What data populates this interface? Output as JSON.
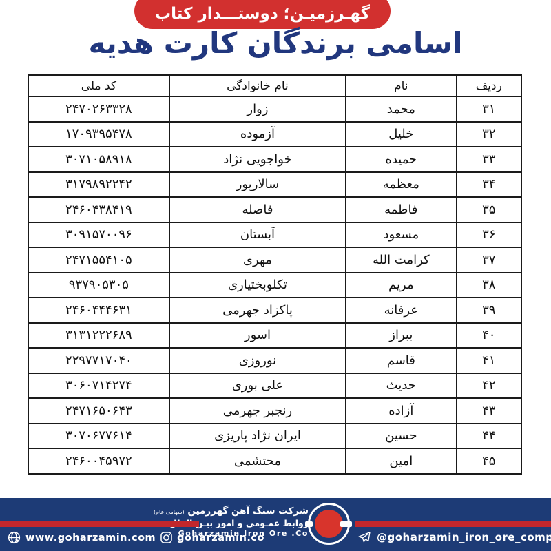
{
  "banner": {
    "label": "گهـرزمیـن؛ دوستـــدار کتاب"
  },
  "title": "اسامی برندگان کارت هدیه",
  "table": {
    "headers": {
      "row": "ردیف",
      "first_name": "نام",
      "last_name": "نام خانوادگی",
      "national_code": "کد ملی"
    },
    "rows": [
      {
        "row": "۳۱",
        "first_name": "محمد",
        "last_name": "زوار",
        "national_code": "۲۴۷۰۲۶۳۳۲۸"
      },
      {
        "row": "۳۲",
        "first_name": "خلیل",
        "last_name": "آزموده",
        "national_code": "۱۷۰۹۳۹۵۴۷۸"
      },
      {
        "row": "۳۳",
        "first_name": "حمیده",
        "last_name": "خواجویی نژاد",
        "national_code": "۳۰۷۱۰۵۸۹۱۸"
      },
      {
        "row": "۳۴",
        "first_name": "معظمه",
        "last_name": "سالارپور",
        "national_code": "۳۱۷۹۸۹۲۲۴۲"
      },
      {
        "row": "۳۵",
        "first_name": "فاطمه",
        "last_name": "فاصله",
        "national_code": "۲۴۶۰۴۳۸۴۱۹"
      },
      {
        "row": "۳۶",
        "first_name": "مسعود",
        "last_name": "آبستان",
        "national_code": "۳۰۹۱۵۷۰۰۹۶"
      },
      {
        "row": "۳۷",
        "first_name": "کرامت الله",
        "last_name": "مهری",
        "national_code": "۲۴۷۱۵۵۴۱۰۵"
      },
      {
        "row": "۳۸",
        "first_name": "مریم",
        "last_name": "تکلوبختیاری",
        "national_code": "۹۳۷۹۰۵۳۰۵"
      },
      {
        "row": "۳۹",
        "first_name": "عرفانه",
        "last_name": "پاکزاد جهرمی",
        "national_code": "۲۴۶۰۴۴۴۶۳۱"
      },
      {
        "row": "۴۰",
        "first_name": "ببراز",
        "last_name": "اسور",
        "national_code": "۳۱۳۱۲۲۲۶۸۹"
      },
      {
        "row": "۴۱",
        "first_name": "قاسم",
        "last_name": "نوروزی",
        "national_code": "۲۲۹۷۷۱۷۰۴۰"
      },
      {
        "row": "۴۲",
        "first_name": "حدیث",
        "last_name": "علی بوری",
        "national_code": "۳۰۶۰۷۱۴۲۷۴"
      },
      {
        "row": "۴۳",
        "first_name": "آزاده",
        "last_name": "رنجبر جهرمی",
        "national_code": "۲۴۷۱۶۵۰۶۴۳"
      },
      {
        "row": "۴۴",
        "first_name": "حسین",
        "last_name": "ایران نژاد پاریزی",
        "national_code": "۳۰۷۰۶۷۷۶۱۴"
      },
      {
        "row": "۴۵",
        "first_name": "امین",
        "last_name": "محتشمی",
        "national_code": "۲۴۶۰۰۴۵۹۷۲"
      }
    ]
  },
  "footer": {
    "company_name": "شرکت سنگ آهن گهرزمین",
    "company_name_suffix": "(سهامی عام)",
    "department": "روابط عمـومی و امور بیـن الملل",
    "company_name_en": "Goharzamin Iron Ore .Co",
    "telegram_handle": "@goharzamin_iron_ore_company",
    "website": "www.goharzamin.com",
    "instagram_handle": "goharzamin.co",
    "icons": {
      "telegram": "paper-plane",
      "website": "globe-with-cursor",
      "instagram": "camera"
    }
  },
  "colors": {
    "banner_red": "#d2302f",
    "bar_red": "#c2272c",
    "title_navy": "#21377e",
    "footer_blue": "#1d3b76",
    "logo_red": "#d8342c",
    "table_border": "#1a1a1a"
  }
}
